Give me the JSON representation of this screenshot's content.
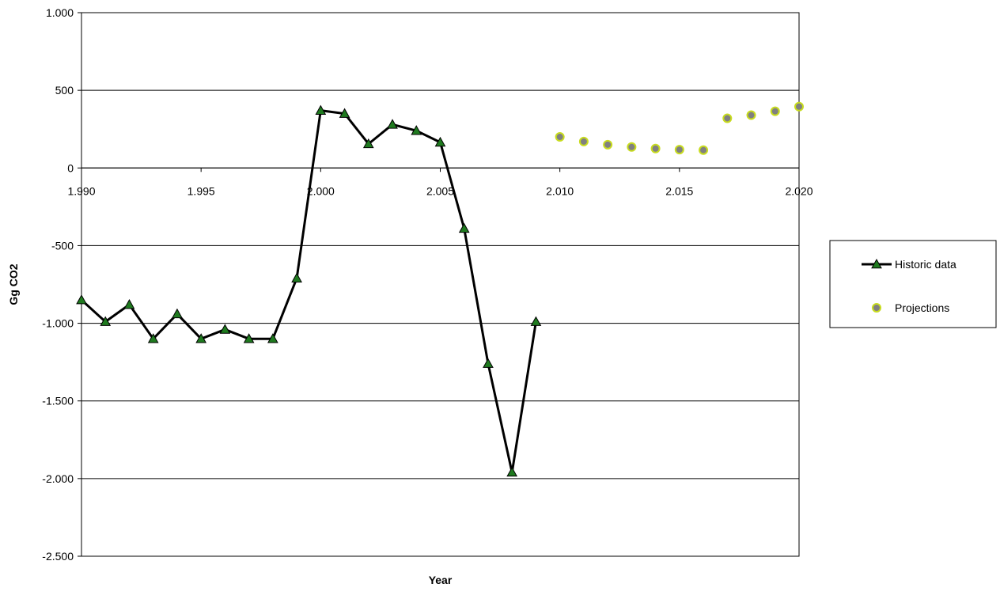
{
  "chart_data": {
    "type": "line",
    "title": "",
    "xlabel": "Year",
    "ylabel": "Gg CO2",
    "xlim": [
      1990,
      2020
    ],
    "ylim": [
      -2500,
      1000
    ],
    "x_ticks": [
      1990,
      1995,
      2000,
      2005,
      2010,
      2015,
      2020
    ],
    "x_tick_labels": [
      "1.990",
      "1.995",
      "2.000",
      "2.005",
      "2.010",
      "2.015",
      "2.020"
    ],
    "y_ticks": [
      1000,
      500,
      0,
      -500,
      -1000,
      -1500,
      -2000,
      -2500
    ],
    "y_tick_labels": [
      "1.000",
      "500",
      "0",
      "-500",
      "-1.000",
      "-1.500",
      "-2.000",
      "-2.500"
    ],
    "grid": "horizontal",
    "legend_position": "right",
    "series": [
      {
        "name": "Historic data",
        "style": "line-triangle",
        "color": "#000000",
        "marker_color": "#1f7a1f",
        "x": [
          1990,
          1991,
          1992,
          1993,
          1994,
          1995,
          1996,
          1997,
          1998,
          1999,
          2000,
          2001,
          2002,
          2003,
          2004,
          2005,
          2006,
          2007,
          2008,
          2009
        ],
        "y": [
          -850,
          -990,
          -880,
          -1100,
          -940,
          -1100,
          -1040,
          -1100,
          -1100,
          -710,
          370,
          350,
          155,
          280,
          240,
          165,
          -390,
          -1260,
          -1960,
          -990
        ]
      },
      {
        "name": "Projections",
        "style": "marker-circle",
        "color": "#808080",
        "marker_edge": "#c8dc1e",
        "x": [
          2010,
          2011,
          2012,
          2013,
          2014,
          2015,
          2016,
          2017,
          2018,
          2019,
          2020
        ],
        "y": [
          200,
          170,
          150,
          135,
          125,
          118,
          115,
          320,
          340,
          365,
          395
        ]
      }
    ]
  }
}
